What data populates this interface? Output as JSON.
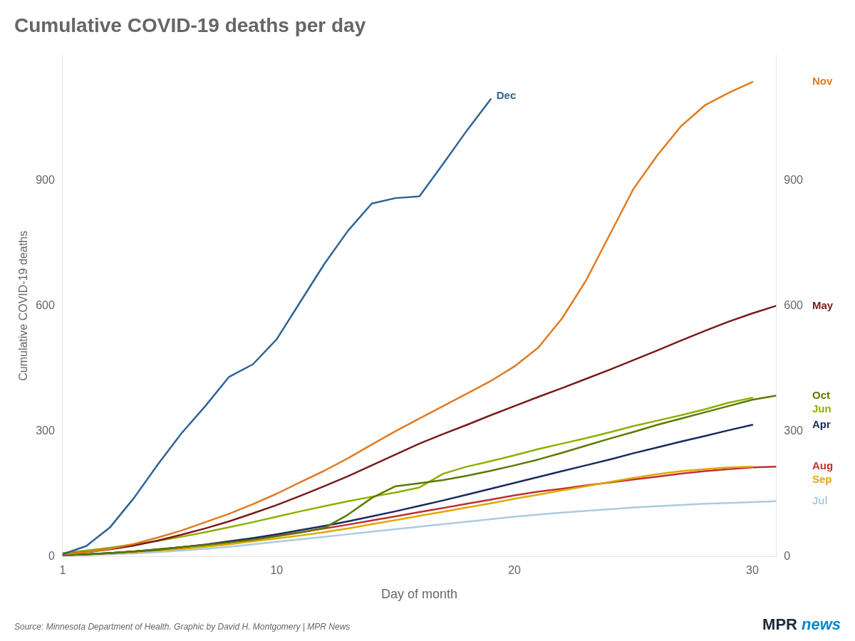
{
  "chart_data": {
    "type": "line",
    "title": "Cumulative COVID-19 deaths per day",
    "xlabel": "Day of month",
    "ylabel": "Cumulative COVID-19 deaths",
    "source": "Source: Minnesota Department of Health. Graphic by David H. Montgomery | MPR News",
    "annotations": [
      {
        "text": "MPR",
        "color": "#1a2a3a"
      },
      {
        "text": "news",
        "color": "#0088cc"
      }
    ],
    "xlim": [
      1,
      31
    ],
    "xticks": [
      1,
      10,
      20,
      30
    ],
    "ylim": [
      0,
      1200
    ],
    "yticks": [
      0,
      300,
      600,
      900
    ],
    "y2lim": [
      0,
      1200
    ],
    "y2ticks": [
      0,
      300,
      600,
      900
    ],
    "grid": false,
    "series": [
      {
        "name": "Jul",
        "color": "#aacce0",
        "x": [
          1,
          2,
          3,
          4,
          5,
          6,
          7,
          8,
          9,
          10,
          11,
          12,
          13,
          14,
          15,
          16,
          17,
          18,
          19,
          20,
          21,
          22,
          23,
          24,
          25,
          26,
          27,
          28,
          29,
          30,
          31
        ],
        "values": [
          2,
          3,
          5,
          7,
          10,
          14,
          18,
          23,
          29,
          35,
          41,
          47,
          53,
          59,
          65,
          71,
          77,
          83,
          89,
          95,
          100,
          105,
          109,
          113,
          117,
          120,
          123,
          126,
          128,
          130,
          132
        ]
      },
      {
        "name": "Aug",
        "color": "#c03030",
        "x": [
          1,
          2,
          3,
          4,
          5,
          6,
          7,
          8,
          9,
          10,
          11,
          12,
          13,
          14,
          15,
          16,
          17,
          18,
          19,
          20,
          21,
          22,
          23,
          24,
          25,
          26,
          27,
          28,
          29,
          30,
          31
        ],
        "values": [
          3,
          5,
          8,
          12,
          17,
          22,
          28,
          35,
          42,
          50,
          58,
          67,
          76,
          86,
          96,
          106,
          116,
          126,
          136,
          146,
          155,
          162,
          170,
          177,
          184,
          191,
          198,
          204,
          209,
          213,
          215
        ]
      },
      {
        "name": "Sep",
        "color": "#e0a800",
        "x": [
          1,
          2,
          3,
          4,
          5,
          6,
          7,
          8,
          9,
          10,
          11,
          12,
          13,
          14,
          15,
          16,
          17,
          18,
          19,
          20,
          21,
          22,
          23,
          24,
          25,
          26,
          27,
          28,
          29,
          30
        ],
        "values": [
          3,
          5,
          7,
          10,
          14,
          18,
          23,
          29,
          36,
          43,
          50,
          58,
          67,
          77,
          87,
          97,
          107,
          117,
          127,
          138,
          148,
          158,
          168,
          178,
          188,
          197,
          204,
          209,
          213,
          215
        ]
      },
      {
        "name": "Apr",
        "color": "#1a2a5e",
        "x": [
          1,
          2,
          3,
          4,
          5,
          6,
          7,
          8,
          9,
          10,
          11,
          12,
          13,
          14,
          15,
          16,
          17,
          18,
          19,
          20,
          21,
          22,
          23,
          24,
          25,
          26,
          27,
          28,
          29,
          30
        ],
        "values": [
          3,
          5,
          8,
          12,
          16,
          22,
          28,
          36,
          44,
          53,
          63,
          73,
          84,
          96,
          108,
          121,
          134,
          148,
          162,
          176,
          190,
          204,
          218,
          232,
          247,
          261,
          275,
          288,
          302,
          315
        ]
      },
      {
        "name": "Jun",
        "color": "#8db000",
        "x": [
          1,
          2,
          3,
          4,
          5,
          6,
          7,
          8,
          9,
          10,
          11,
          12,
          13,
          14,
          15,
          16,
          17,
          18,
          19,
          20,
          21,
          22,
          23,
          24,
          25,
          26,
          27,
          28,
          29,
          30
        ],
        "values": [
          8,
          14,
          21,
          29,
          37,
          47,
          58,
          70,
          82,
          95,
          108,
          120,
          132,
          143,
          153,
          165,
          198,
          215,
          228,
          242,
          257,
          270,
          283,
          297,
          312,
          325,
          338,
          352,
          368,
          380
        ]
      },
      {
        "name": "Oct",
        "color": "#5a7a00",
        "x": [
          1,
          2,
          3,
          4,
          5,
          6,
          7,
          8,
          9,
          10,
          11,
          12,
          13,
          14,
          15,
          16,
          17,
          18,
          19,
          20,
          21,
          22,
          23,
          24,
          25,
          26,
          27,
          28,
          29,
          30,
          31
        ],
        "values": [
          3,
          5,
          8,
          12,
          17,
          22,
          27,
          33,
          40,
          48,
          57,
          68,
          100,
          140,
          168,
          175,
          183,
          193,
          205,
          218,
          232,
          248,
          265,
          282,
          298,
          315,
          330,
          345,
          360,
          375,
          385
        ]
      },
      {
        "name": "May",
        "color": "#7b1a1a",
        "x": [
          1,
          2,
          3,
          4,
          5,
          6,
          7,
          8,
          9,
          10,
          11,
          12,
          13,
          14,
          15,
          16,
          17,
          18,
          19,
          20,
          21,
          22,
          23,
          24,
          25,
          26,
          27,
          28,
          29,
          30,
          31
        ],
        "values": [
          5,
          10,
          17,
          26,
          38,
          52,
          67,
          84,
          103,
          123,
          145,
          168,
          192,
          218,
          244,
          270,
          293,
          315,
          338,
          360,
          382,
          403,
          425,
          447,
          470,
          493,
          517,
          540,
          562,
          582,
          600
        ]
      },
      {
        "name": "Nov",
        "color": "#e07b20",
        "x": [
          1,
          2,
          3,
          4,
          5,
          6,
          7,
          8,
          9,
          10,
          11,
          12,
          13,
          14,
          15,
          16,
          17,
          18,
          19,
          20,
          21,
          22,
          23,
          24,
          25,
          26,
          27,
          28,
          29,
          30
        ],
        "values": [
          5,
          10,
          18,
          30,
          45,
          62,
          82,
          102,
          125,
          150,
          178,
          205,
          235,
          268,
          300,
          330,
          360,
          390,
          420,
          455,
          500,
          570,
          660,
          770,
          880,
          960,
          1030,
          1080,
          1110,
          1136
        ]
      },
      {
        "name": "Dec",
        "color": "#2e6496",
        "x": [
          1,
          2,
          3,
          4,
          5,
          6,
          7,
          8,
          9,
          10,
          11,
          12,
          13,
          14,
          15,
          16,
          17,
          18,
          19
        ],
        "values": [
          5,
          25,
          70,
          140,
          220,
          295,
          360,
          430,
          460,
          520,
          610,
          700,
          780,
          845,
          858,
          862,
          940,
          1020,
          1095
        ]
      }
    ]
  }
}
